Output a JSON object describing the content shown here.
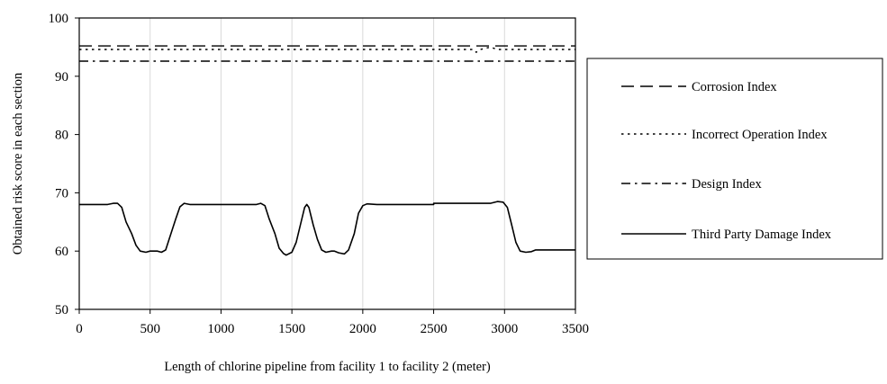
{
  "chart_data": {
    "type": "line",
    "title": "",
    "xlabel": "Length of chlorine pipeline from facility 1 to facility 2 (meter)",
    "ylabel": "Obtained risk score in each section",
    "xlim": [
      0,
      3500
    ],
    "ylim": [
      50,
      100
    ],
    "x_ticks": [
      0,
      500,
      1000,
      1500,
      2000,
      2500,
      3000,
      3500
    ],
    "y_ticks": [
      50,
      60,
      70,
      80,
      90,
      100
    ],
    "grid": "vertical",
    "legend_position": "right",
    "series": [
      {
        "name": "Corrosion Index",
        "style": "dashed",
        "color": "#000000",
        "points": [
          [
            0,
            95.2
          ],
          [
            3500,
            95.2
          ]
        ]
      },
      {
        "name": "Incorrect Operation Index",
        "style": "dotted",
        "color": "#000000",
        "points": [
          [
            0,
            94.6
          ],
          [
            2780,
            94.6
          ],
          [
            2800,
            94.1
          ],
          [
            2830,
            94.6
          ],
          [
            2900,
            95.0
          ],
          [
            2950,
            94.6
          ],
          [
            3500,
            94.6
          ]
        ]
      },
      {
        "name": "Design Index",
        "style": "dash-dot",
        "color": "#000000",
        "points": [
          [
            0,
            92.6
          ],
          [
            3500,
            92.6
          ]
        ]
      },
      {
        "name": "Third Party Damage Index",
        "style": "solid",
        "color": "#000000",
        "points": [
          [
            0,
            68.0
          ],
          [
            200,
            68.0
          ],
          [
            240,
            68.2
          ],
          [
            270,
            68.2
          ],
          [
            300,
            67.5
          ],
          [
            330,
            65.0
          ],
          [
            370,
            63.0
          ],
          [
            400,
            61.0
          ],
          [
            430,
            60.0
          ],
          [
            470,
            59.8
          ],
          [
            500,
            60.0
          ],
          [
            550,
            60.0
          ],
          [
            580,
            59.8
          ],
          [
            610,
            60.2
          ],
          [
            640,
            62.5
          ],
          [
            680,
            65.5
          ],
          [
            710,
            67.6
          ],
          [
            740,
            68.2
          ],
          [
            780,
            68.0
          ],
          [
            900,
            68.0
          ],
          [
            1100,
            68.0
          ],
          [
            1250,
            68.0
          ],
          [
            1280,
            68.2
          ],
          [
            1310,
            67.8
          ],
          [
            1340,
            65.5
          ],
          [
            1380,
            63.0
          ],
          [
            1410,
            60.5
          ],
          [
            1440,
            59.6
          ],
          [
            1460,
            59.3
          ],
          [
            1500,
            59.8
          ],
          [
            1530,
            61.5
          ],
          [
            1560,
            64.5
          ],
          [
            1590,
            67.5
          ],
          [
            1605,
            68.0
          ],
          [
            1620,
            67.5
          ],
          [
            1650,
            64.5
          ],
          [
            1680,
            62.0
          ],
          [
            1710,
            60.2
          ],
          [
            1740,
            59.8
          ],
          [
            1780,
            60.0
          ],
          [
            1800,
            60.0
          ],
          [
            1830,
            59.7
          ],
          [
            1870,
            59.5
          ],
          [
            1900,
            60.2
          ],
          [
            1940,
            63.0
          ],
          [
            1970,
            66.5
          ],
          [
            2000,
            67.8
          ],
          [
            2030,
            68.1
          ],
          [
            2100,
            68.0
          ],
          [
            2500,
            68.0
          ],
          [
            2500,
            68.2
          ],
          [
            2900,
            68.2
          ],
          [
            2950,
            68.5
          ],
          [
            2990,
            68.4
          ],
          [
            3020,
            67.5
          ],
          [
            3050,
            64.5
          ],
          [
            3080,
            61.5
          ],
          [
            3110,
            60.0
          ],
          [
            3150,
            59.8
          ],
          [
            3190,
            59.9
          ],
          [
            3220,
            60.2
          ],
          [
            3300,
            60.2
          ],
          [
            3500,
            60.2
          ]
        ]
      }
    ]
  }
}
